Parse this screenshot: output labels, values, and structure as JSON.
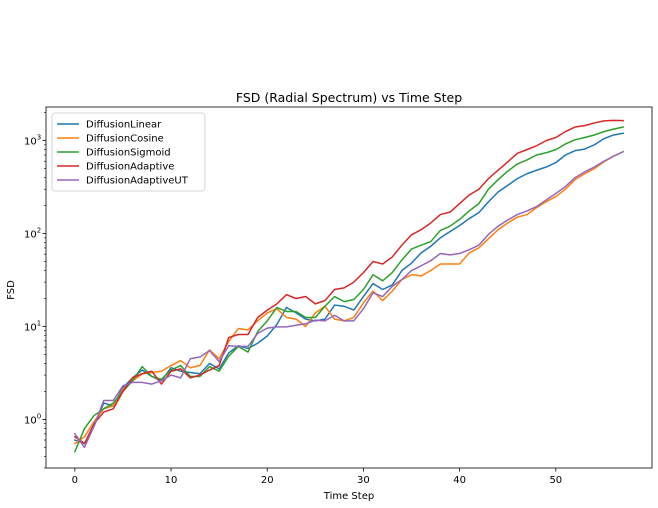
{
  "chart_data": {
    "type": "line",
    "title": "FSD (Radial Spectrum) vs Time Step",
    "xlabel": "Time Step",
    "ylabel": "FSD",
    "yscale": "log",
    "xlim": [
      -3,
      60
    ],
    "ylim": [
      0.3,
      2300
    ],
    "x_ticks": [
      0,
      10,
      20,
      30,
      40,
      50
    ],
    "y_ticks": [
      {
        "value": 1,
        "base": "10",
        "exp": "0"
      },
      {
        "value": 10,
        "base": "10",
        "exp": "1"
      },
      {
        "value": 100,
        "base": "10",
        "exp": "2"
      },
      {
        "value": 1000,
        "base": "10",
        "exp": "3"
      }
    ],
    "grid": false,
    "legend_position": "upper-left",
    "x": [
      0,
      1,
      2,
      3,
      4,
      5,
      6,
      7,
      8,
      9,
      10,
      11,
      12,
      13,
      14,
      15,
      16,
      17,
      18,
      19,
      20,
      21,
      22,
      23,
      24,
      25,
      26,
      27,
      28,
      29,
      30,
      31,
      32,
      33,
      34,
      35,
      36,
      37,
      38,
      39,
      40,
      41,
      42,
      43,
      44,
      45,
      46,
      47,
      48,
      49,
      50,
      51,
      52,
      53,
      54,
      55,
      56,
      57
    ],
    "series": [
      {
        "name": "DiffusionLinear",
        "color": "#1f77b4",
        "values": [
          0.6,
          0.55,
          0.85,
          1.5,
          1.4,
          2.2,
          2.8,
          3.4,
          2.9,
          2.6,
          3.6,
          3.3,
          3.2,
          3.1,
          4.0,
          3.5,
          5.2,
          6.2,
          5.8,
          6.6,
          7.9,
          10.5,
          16.0,
          14.0,
          12.0,
          11.5,
          12.0,
          17.0,
          16.5,
          15.0,
          21.0,
          29.0,
          25.0,
          28.0,
          40.0,
          48.0,
          62.0,
          73.0,
          90.0,
          105.0,
          122.0,
          145.0,
          168.0,
          220.0,
          280.0,
          330.0,
          390.0,
          440.0,
          480.0,
          520.0,
          580.0,
          700.0,
          780.0,
          810.0,
          900.0,
          1050.0,
          1150.0,
          1200.0
        ]
      },
      {
        "name": "DiffusionCosine",
        "color": "#ff7f0e",
        "values": [
          0.55,
          0.65,
          0.95,
          1.3,
          1.4,
          2.1,
          2.6,
          3.1,
          3.2,
          3.3,
          3.8,
          4.3,
          3.6,
          3.8,
          5.6,
          4.5,
          6.9,
          9.5,
          9.2,
          11.5,
          14.0,
          15.5,
          12.5,
          12.0,
          10.0,
          14.0,
          16.5,
          12.0,
          11.5,
          12.5,
          18.0,
          24.0,
          19.0,
          24.0,
          32.0,
          36.0,
          35.0,
          40.0,
          47.0,
          47.0,
          47.0,
          62.0,
          70.0,
          88.0,
          110.0,
          130.0,
          150.0,
          160.0,
          190.0,
          220.0,
          250.0,
          300.0,
          380.0,
          440.0,
          500.0,
          590.0,
          680.0,
          760.0
        ]
      },
      {
        "name": "DiffusionSigmoid",
        "color": "#2ca02c",
        "values": [
          0.45,
          0.8,
          1.1,
          1.3,
          1.5,
          2.0,
          2.6,
          3.7,
          2.9,
          2.7,
          3.4,
          3.8,
          2.9,
          2.9,
          3.7,
          3.3,
          4.8,
          6.1,
          5.3,
          8.8,
          11.5,
          16.0,
          14.5,
          14.5,
          12.5,
          12.5,
          16.5,
          21.0,
          18.5,
          19.5,
          25.0,
          36.0,
          31.0,
          38.0,
          52.0,
          68.0,
          75.0,
          82.0,
          108.0,
          120.0,
          142.0,
          175.0,
          210.0,
          300.0,
          380.0,
          470.0,
          560.0,
          620.0,
          700.0,
          740.0,
          800.0,
          920.0,
          1020.0,
          1080.0,
          1150.0,
          1250.0,
          1330.0,
          1400.0
        ]
      },
      {
        "name": "DiffusionAdaptive",
        "color": "#d62728",
        "values": [
          0.65,
          0.55,
          0.9,
          1.2,
          1.3,
          2.0,
          2.8,
          3.1,
          3.3,
          2.4,
          3.3,
          3.5,
          2.8,
          3.0,
          3.4,
          3.8,
          7.6,
          8.2,
          8.2,
          12.5,
          15.0,
          17.5,
          22.0,
          20.0,
          21.0,
          17.5,
          19.0,
          25.0,
          26.0,
          30.0,
          38.0,
          50.0,
          47.0,
          56.0,
          75.0,
          97.0,
          110.0,
          130.0,
          160.0,
          170.0,
          210.0,
          260.0,
          300.0,
          390.0,
          480.0,
          590.0,
          730.0,
          800.0,
          880.0,
          1000.0,
          1080.0,
          1250.0,
          1400.0,
          1450.0,
          1550.0,
          1630.0,
          1650.0,
          1640.0
        ]
      },
      {
        "name": "DiffusionAdaptiveUT",
        "color": "#9467bd",
        "values": [
          0.7,
          0.5,
          0.85,
          1.6,
          1.6,
          2.3,
          2.5,
          2.5,
          2.4,
          2.6,
          3.0,
          2.8,
          4.5,
          4.7,
          5.5,
          4.2,
          6.2,
          6.1,
          6.1,
          8.4,
          9.6,
          9.9,
          9.9,
          10.3,
          10.7,
          11.7,
          11.5,
          13.2,
          11.5,
          11.5,
          15.5,
          23.0,
          21.0,
          27.0,
          32.0,
          40.0,
          45.0,
          51.0,
          61.0,
          59.0,
          61.0,
          67.0,
          75.0,
          98.0,
          120.0,
          140.0,
          160.0,
          175.0,
          195.0,
          230.0,
          270.0,
          320.0,
          400.0,
          460.0,
          520.0,
          600.0,
          680.0,
          760.0
        ]
      }
    ]
  }
}
